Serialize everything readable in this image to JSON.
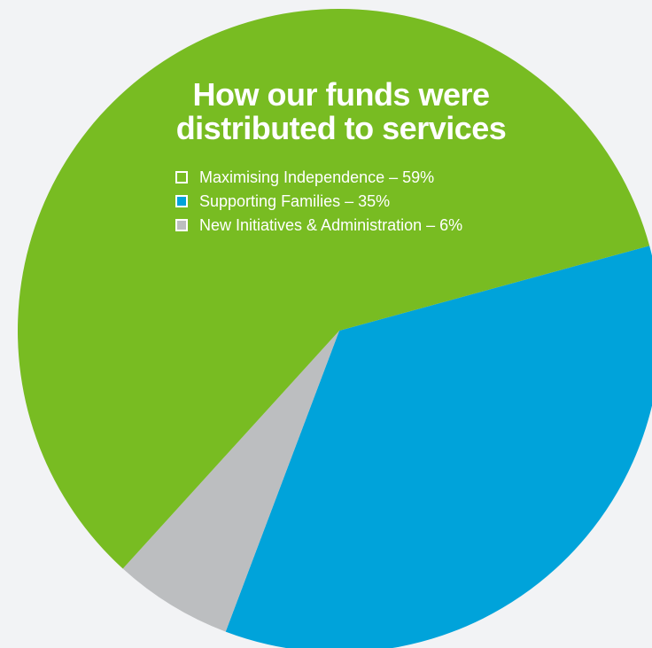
{
  "chart_data": {
    "type": "pie",
    "title": "How our funds were distributed to services",
    "title_lines": [
      "How our funds were",
      "distributed to services"
    ],
    "slices": [
      {
        "label": "Maximising Independence",
        "value": 59,
        "legend_text": "Maximising Independence – 59%",
        "color": "#78bc22",
        "legend_swatch": "#ffffff"
      },
      {
        "label": "Supporting Families",
        "value": 35,
        "legend_text": "Supporting Families – 35%",
        "color": "#00a3da",
        "legend_swatch": "#00a3da"
      },
      {
        "label": "New Initiatives & Administration",
        "value": 6,
        "legend_text": "New Initiatives  & Administration – 6%",
        "color": "#bcbec0",
        "legend_swatch": "#bcbec0"
      }
    ],
    "legend_position": "inside-top",
    "background": "#f2f3f5"
  }
}
